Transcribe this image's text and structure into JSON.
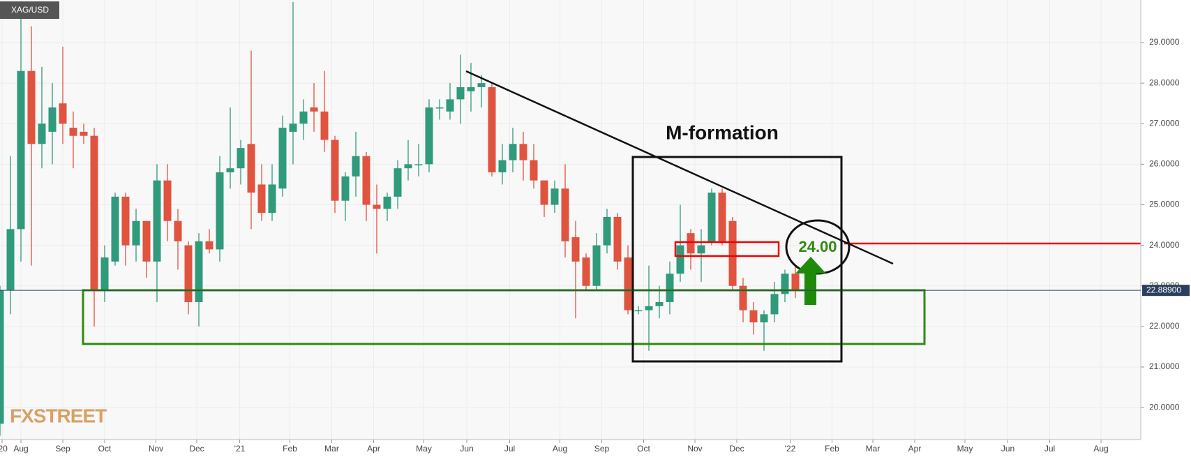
{
  "chart_data": {
    "type": "candlestick",
    "title": "XAG/USD",
    "source": "FXSTREET",
    "annotations": [
      "M-formation",
      "24.00"
    ],
    "x": [
      0,
      1,
      2,
      3,
      4,
      5,
      6,
      7,
      8,
      9,
      10,
      11,
      12,
      13,
      14,
      15,
      16,
      17,
      18,
      19,
      20,
      21,
      22,
      23,
      24,
      25,
      26,
      27,
      28,
      29,
      30,
      31,
      32,
      33,
      34,
      35,
      36,
      37,
      38,
      39,
      40,
      41,
      42,
      43,
      44,
      45,
      46,
      47,
      48,
      49,
      50,
      51,
      52,
      53,
      54,
      55,
      56,
      57,
      58,
      59,
      60,
      61,
      62,
      63,
      64,
      65,
      66,
      67,
      68,
      69,
      70,
      71,
      72,
      73,
      74,
      75,
      76
    ],
    "open": [
      19.6,
      22.9,
      24.4,
      28.3,
      26.5,
      26.8,
      27.5,
      26.9,
      26.8,
      26.7,
      22.9,
      23.6,
      25.2,
      24.0,
      24.6,
      23.6,
      25.6,
      24.6,
      24.0,
      22.6,
      24.1,
      23.9,
      25.8,
      25.9,
      26.5,
      25.5,
      24.8,
      25.4,
      26.8,
      27.0,
      27.4,
      27.3,
      26.6,
      25.1,
      25.7,
      26.2,
      25.0,
      24.9,
      25.2,
      25.9,
      26.0,
      26.0,
      27.4,
      27.3,
      27.6,
      27.8,
      27.9,
      27.9,
      25.8,
      26.1,
      26.5,
      26.1,
      25.6,
      25.0,
      25.4,
      24.2,
      23.7,
      23.0,
      24.0,
      24.7,
      23.7,
      22.4,
      22.4,
      22.5,
      22.6,
      23.3,
      24.3,
      23.8,
      24.1,
      25.3,
      24.6,
      23.0,
      22.4,
      22.1,
      22.3,
      22.8,
      23.3
    ],
    "high": [
      23.0,
      26.2,
      29.9,
      29.4,
      28.4,
      28.0,
      28.9,
      27.3,
      27.0,
      26.9,
      24.0,
      25.3,
      25.3,
      24.9,
      24.6,
      26.0,
      26.0,
      24.9,
      24.1,
      24.3,
      24.4,
      26.2,
      27.4,
      26.6,
      28.8,
      26.0,
      26.0,
      27.2,
      30.0,
      27.6,
      28.0,
      28.3,
      26.7,
      25.8,
      26.8,
      26.3,
      25.5,
      25.3,
      26.1,
      26.6,
      26.5,
      27.6,
      27.6,
      28.0,
      28.7,
      28.5,
      28.2,
      28.0,
      26.5,
      26.9,
      26.8,
      26.5,
      25.6,
      25.6,
      26.0,
      24.6,
      23.8,
      24.3,
      24.9,
      24.8,
      24.0,
      22.5,
      23.5,
      23.0,
      23.6,
      25.0,
      24.4,
      24.4,
      25.4,
      25.4,
      24.7,
      23.2,
      22.6,
      22.4,
      23.1,
      23.4,
      23.5
    ],
    "low": [
      19.3,
      22.3,
      23.6,
      23.5,
      25.9,
      26.0,
      26.5,
      25.9,
      26.5,
      22.0,
      22.6,
      23.5,
      23.5,
      23.6,
      23.2,
      22.6,
      24.1,
      23.4,
      22.3,
      22.0,
      23.8,
      23.6,
      25.4,
      25.5,
      24.4,
      24.6,
      24.6,
      25.2,
      26.0,
      26.6,
      26.8,
      26.3,
      24.8,
      24.6,
      25.2,
      24.6,
      23.8,
      24.6,
      24.9,
      25.6,
      25.7,
      25.8,
      27.1,
      27.1,
      27.0,
      27.3,
      27.4,
      25.7,
      25.5,
      25.8,
      25.6,
      25.4,
      24.7,
      24.8,
      23.7,
      22.2,
      22.9,
      22.9,
      23.8,
      23.4,
      22.3,
      22.3,
      21.4,
      22.2,
      22.3,
      23.1,
      23.4,
      23.1,
      24.0,
      24.0,
      22.9,
      22.1,
      21.8,
      21.4,
      22.1,
      22.6,
      22.7
    ],
    "close": [
      22.9,
      24.4,
      28.3,
      26.5,
      27.0,
      27.4,
      27.0,
      26.7,
      26.7,
      22.9,
      23.7,
      25.2,
      24.0,
      24.6,
      23.6,
      25.6,
      24.6,
      24.1,
      22.6,
      24.1,
      23.9,
      25.8,
      25.9,
      26.4,
      25.3,
      24.8,
      25.5,
      26.9,
      27.0,
      27.3,
      27.3,
      26.6,
      25.1,
      25.7,
      26.2,
      25.0,
      24.9,
      25.2,
      25.9,
      26.0,
      26.0,
      27.4,
      27.4,
      27.6,
      27.9,
      27.9,
      28.0,
      25.8,
      26.1,
      26.5,
      26.1,
      25.6,
      25.0,
      25.4,
      24.1,
      23.6,
      23.0,
      24.0,
      24.7,
      23.6,
      22.4,
      22.4,
      22.5,
      22.6,
      23.3,
      24.0,
      23.8,
      24.0,
      25.3,
      24.1,
      23.0,
      22.4,
      22.1,
      22.3,
      22.8,
      23.3,
      22.9
    ],
    "up_color": "#2f9a7c",
    "down_color": "#e0533f",
    "xlim": [
      0,
      109
    ],
    "ylim": [
      19.21,
      30.05
    ],
    "xticks": [
      {
        "value": 0.2,
        "label": "'20"
      },
      {
        "value": 2.0,
        "label": "Aug"
      },
      {
        "value": 6.0,
        "label": "Sep"
      },
      {
        "value": 10.0,
        "label": "Oct"
      },
      {
        "value": 14.9,
        "label": "Nov"
      },
      {
        "value": 18.8,
        "label": "Dec"
      },
      {
        "value": 22.9,
        "label": "'21"
      },
      {
        "value": 27.7,
        "label": "Feb"
      },
      {
        "value": 31.7,
        "label": "Mar"
      },
      {
        "value": 35.7,
        "label": "Apr"
      },
      {
        "value": 40.5,
        "label": "May"
      },
      {
        "value": 44.6,
        "label": "Jun"
      },
      {
        "value": 48.7,
        "label": "Jul"
      },
      {
        "value": 53.5,
        "label": "Aug"
      },
      {
        "value": 57.5,
        "label": "Sep"
      },
      {
        "value": 61.5,
        "label": "Oct"
      },
      {
        "value": 66.4,
        "label": "Nov"
      },
      {
        "value": 70.4,
        "label": "Dec"
      },
      {
        "value": 75.5,
        "label": "'22"
      },
      {
        "value": 79.5,
        "label": "Feb"
      },
      {
        "value": 83.4,
        "label": "Mar"
      },
      {
        "value": 87.4,
        "label": "Apr"
      },
      {
        "value": 92.2,
        "label": "May"
      },
      {
        "value": 96.3,
        "label": "Jun"
      },
      {
        "value": 100.3,
        "label": "Jul"
      },
      {
        "value": 105.2,
        "label": "Aug"
      }
    ],
    "yticks": [
      {
        "value": 20,
        "label": "20.0000"
      },
      {
        "value": 21,
        "label": "21.0000"
      },
      {
        "value": 22,
        "label": "22.0000"
      },
      {
        "value": 23,
        "label": "23.0000"
      },
      {
        "value": 24,
        "label": "24.0000"
      },
      {
        "value": 25,
        "label": "25.0000"
      },
      {
        "value": 26,
        "label": "26.0000"
      },
      {
        "value": 27,
        "label": "27.0000"
      },
      {
        "value": 28,
        "label": "28.0000"
      },
      {
        "value": 29,
        "label": "29.0000"
      }
    ],
    "last_price": {
      "value": 22.889,
      "label": "22.88900"
    },
    "grid": true
  }
}
